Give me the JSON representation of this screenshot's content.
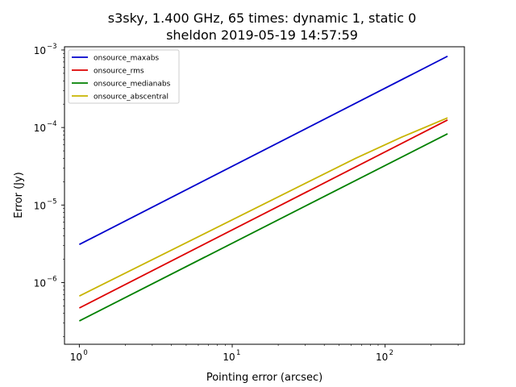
{
  "chart_data": {
    "type": "line",
    "title_line1": "s3sky, 1.400 GHz, 65 times: dynamic 1, static 0",
    "title_line2": "sheldon 2019-05-19 14:57:59",
    "xlabel": "Pointing error (arcsec)",
    "ylabel": "Error (Jy)",
    "xscale": "log",
    "yscale": "log",
    "xlim": [
      0.8,
      330
    ],
    "ylim": [
      1.6e-07,
      0.0011
    ],
    "grid": false,
    "legend_position": "top-left",
    "x_ticks": [
      {
        "value": 1,
        "base": "10",
        "exp": "0"
      },
      {
        "value": 10,
        "base": "10",
        "exp": "1"
      },
      {
        "value": 100,
        "base": "10",
        "exp": "2"
      }
    ],
    "y_ticks": [
      {
        "value": 1e-06,
        "base": "10",
        "exp": "−6"
      },
      {
        "value": 1e-05,
        "base": "10",
        "exp": "−5"
      },
      {
        "value": 0.0001,
        "base": "10",
        "exp": "−4"
      },
      {
        "value": 0.001,
        "base": "10",
        "exp": "−3"
      }
    ],
    "series": [
      {
        "name": "onsource_maxabs",
        "color": "#0000cc",
        "x": [
          1,
          256
        ],
        "y": [
          3.1e-06,
          0.00083
        ]
      },
      {
        "name": "onsource_rms",
        "color": "#dd0000",
        "x": [
          1,
          256
        ],
        "y": [
          4.7e-07,
          0.000125
        ]
      },
      {
        "name": "onsource_medianabs",
        "color": "#008000",
        "x": [
          1,
          256
        ],
        "y": [
          3.2e-07,
          8.3e-05
        ]
      },
      {
        "name": "onsource_abscentral",
        "color": "#c8b400",
        "x": [
          1,
          64,
          128,
          256
        ],
        "y": [
          6.7e-07,
          4e-05,
          7.5e-05,
          0.000133
        ]
      }
    ]
  }
}
